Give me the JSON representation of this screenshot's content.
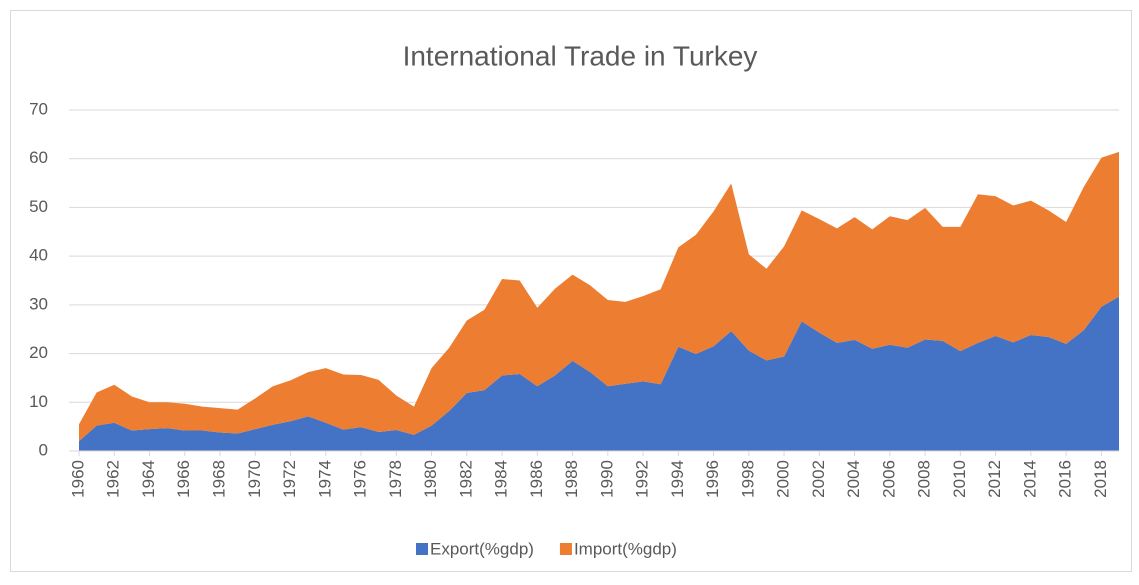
{
  "chart_data": {
    "type": "area",
    "stacked": true,
    "title": "International Trade in Turkey",
    "x": [
      1960,
      1961,
      1962,
      1963,
      1964,
      1965,
      1966,
      1967,
      1968,
      1969,
      1970,
      1971,
      1972,
      1973,
      1974,
      1975,
      1976,
      1977,
      1978,
      1979,
      1980,
      1981,
      1982,
      1983,
      1984,
      1985,
      1986,
      1987,
      1988,
      1989,
      1990,
      1991,
      1992,
      1993,
      1994,
      1995,
      1996,
      1997,
      1998,
      1999,
      2000,
      2001,
      2002,
      2003,
      2004,
      2005,
      2006,
      2007,
      2008,
      2009,
      2010,
      2011,
      2012,
      2013,
      2014,
      2015,
      2016,
      2017,
      2018,
      2019
    ],
    "xlim": [
      1960,
      2019
    ],
    "xticks": [
      1960,
      1962,
      1964,
      1966,
      1968,
      1970,
      1972,
      1974,
      1976,
      1978,
      1980,
      1982,
      1984,
      1986,
      1988,
      1990,
      1992,
      1994,
      1996,
      1998,
      2000,
      2002,
      2004,
      2006,
      2008,
      2010,
      2012,
      2014,
      2016,
      2018
    ],
    "ylim": [
      0,
      70
    ],
    "yticks": [
      0,
      10,
      20,
      30,
      40,
      50,
      60,
      70
    ],
    "grid": true,
    "legend": "bottom",
    "series": [
      {
        "name": "Export(%gdp)",
        "color": "#4472c4",
        "values": [
          2,
          5.2,
          5.8,
          4.2,
          4.5,
          4.7,
          4.2,
          4.2,
          3.8,
          3.6,
          4.5,
          5.4,
          6.1,
          7.1,
          5.8,
          4.4,
          4.9,
          3.9,
          4.3,
          3.3,
          5.2,
          8.2,
          11.9,
          12.5,
          15.5,
          15.8,
          13.3,
          15.5,
          18.5,
          16.2,
          13.3,
          13.8,
          14.3,
          13.7,
          21.4,
          19.9,
          21.5,
          24.6,
          20.6,
          18.6,
          19.4,
          26.6,
          24.3,
          22.2,
          22.8,
          21,
          21.8,
          21.2,
          22.9,
          22.6,
          20.5,
          22.2,
          23.6,
          22.3,
          23.8,
          23.4,
          22,
          24.8,
          29.6,
          31.7
        ]
      },
      {
        "name": "Import(%gdp)",
        "color": "#ed7d31",
        "values": [
          3.5,
          6.8,
          7.8,
          7,
          5.5,
          5.3,
          5.5,
          4.9,
          5,
          4.9,
          6.3,
          7.9,
          8.4,
          9.1,
          11.2,
          11.3,
          10.7,
          10.7,
          7.1,
          5.8,
          11.8,
          13,
          14.9,
          16.5,
          19.8,
          19.2,
          16.1,
          17.8,
          17.7,
          17.8,
          17.7,
          16.8,
          17.5,
          19.5,
          20.4,
          24.5,
          27.7,
          30.3,
          19.8,
          18.8,
          22.6,
          22.8,
          23.3,
          23.5,
          25.2,
          24.5,
          26.4,
          26.2,
          27,
          23.4,
          25.5,
          30.5,
          28.7,
          28.1,
          27.6,
          26,
          25,
          29.4,
          30.6,
          29.7
        ]
      }
    ]
  }
}
